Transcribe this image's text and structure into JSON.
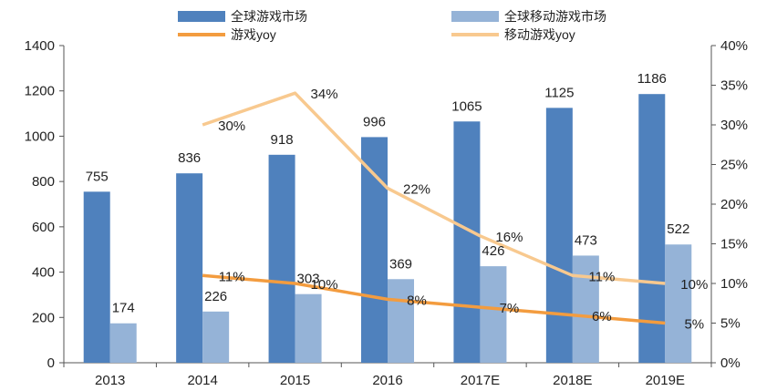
{
  "chart_data": {
    "type": "bar",
    "categories": [
      "2013",
      "2014",
      "2015",
      "2016",
      "2017E",
      "2018E",
      "2019E"
    ],
    "series": [
      {
        "name": "全球游戏市场",
        "kind": "bar",
        "axis": "left",
        "color": "#4f81bd",
        "values": [
          755,
          836,
          918,
          996,
          1065,
          1125,
          1186
        ],
        "labels": [
          "755",
          "836",
          "918",
          "996",
          "1065",
          "1125",
          "1186"
        ]
      },
      {
        "name": "全球移动游戏市场",
        "kind": "bar",
        "axis": "left",
        "color": "#95b3d7",
        "values": [
          174,
          226,
          303,
          369,
          426,
          473,
          522
        ],
        "labels": [
          "174",
          "226",
          "303",
          "369",
          "426",
          "473",
          "522"
        ]
      },
      {
        "name": "游戏yoy",
        "kind": "line",
        "axis": "right",
        "color": "#f39c3f",
        "values": [
          null,
          11,
          10,
          8,
          7,
          6,
          5
        ],
        "labels": [
          null,
          "11%",
          "10%",
          "8%",
          "7%",
          "6%",
          "5%"
        ]
      },
      {
        "name": "移动游戏yoy",
        "kind": "line",
        "axis": "right",
        "color": "#f8c98f",
        "values": [
          null,
          30,
          34,
          22,
          16,
          11,
          10
        ],
        "labels": [
          null,
          "30%",
          "34%",
          "22%",
          "16%",
          "11%",
          "10%"
        ]
      }
    ],
    "y_left": {
      "min": 0,
      "max": 1400,
      "ticks": [
        "0",
        "200",
        "400",
        "600",
        "800",
        "1000",
        "1200",
        "1400"
      ]
    },
    "y_right": {
      "min": 0,
      "max": 40,
      "ticks": [
        "0%",
        "5%",
        "10%",
        "15%",
        "20%",
        "25%",
        "30%",
        "35%",
        "40%"
      ]
    },
    "legend_position": "top",
    "grid": false
  }
}
